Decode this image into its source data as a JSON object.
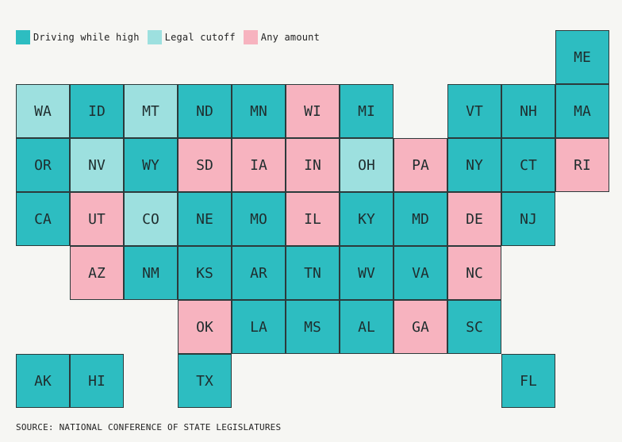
{
  "legend": [
    {
      "label": "Driving while high",
      "key": "high"
    },
    {
      "label": "Legal cutoff",
      "key": "cutoff"
    },
    {
      "label": "Any amount",
      "key": "any"
    }
  ],
  "colors": {
    "high": "#2dbdc1",
    "cutoff": "#9de0df",
    "any": "#f7b3bf"
  },
  "states": [
    {
      "abbr": "ME",
      "col": 10,
      "row": 0,
      "cat": "high"
    },
    {
      "abbr": "WA",
      "col": 0,
      "row": 1,
      "cat": "cutoff"
    },
    {
      "abbr": "ID",
      "col": 1,
      "row": 1,
      "cat": "high"
    },
    {
      "abbr": "MT",
      "col": 2,
      "row": 1,
      "cat": "cutoff"
    },
    {
      "abbr": "ND",
      "col": 3,
      "row": 1,
      "cat": "high"
    },
    {
      "abbr": "MN",
      "col": 4,
      "row": 1,
      "cat": "high"
    },
    {
      "abbr": "WI",
      "col": 5,
      "row": 1,
      "cat": "any"
    },
    {
      "abbr": "MI",
      "col": 6,
      "row": 1,
      "cat": "high"
    },
    {
      "abbr": "VT",
      "col": 8,
      "row": 1,
      "cat": "high"
    },
    {
      "abbr": "NH",
      "col": 9,
      "row": 1,
      "cat": "high"
    },
    {
      "abbr": "MA",
      "col": 10,
      "row": 1,
      "cat": "high"
    },
    {
      "abbr": "OR",
      "col": 0,
      "row": 2,
      "cat": "high"
    },
    {
      "abbr": "NV",
      "col": 1,
      "row": 2,
      "cat": "cutoff"
    },
    {
      "abbr": "WY",
      "col": 2,
      "row": 2,
      "cat": "high"
    },
    {
      "abbr": "SD",
      "col": 3,
      "row": 2,
      "cat": "any"
    },
    {
      "abbr": "IA",
      "col": 4,
      "row": 2,
      "cat": "any"
    },
    {
      "abbr": "IN",
      "col": 5,
      "row": 2,
      "cat": "any"
    },
    {
      "abbr": "OH",
      "col": 6,
      "row": 2,
      "cat": "cutoff"
    },
    {
      "abbr": "PA",
      "col": 7,
      "row": 2,
      "cat": "any"
    },
    {
      "abbr": "NY",
      "col": 8,
      "row": 2,
      "cat": "high"
    },
    {
      "abbr": "CT",
      "col": 9,
      "row": 2,
      "cat": "high"
    },
    {
      "abbr": "RI",
      "col": 10,
      "row": 2,
      "cat": "any"
    },
    {
      "abbr": "CA",
      "col": 0,
      "row": 3,
      "cat": "high"
    },
    {
      "abbr": "UT",
      "col": 1,
      "row": 3,
      "cat": "any"
    },
    {
      "abbr": "CO",
      "col": 2,
      "row": 3,
      "cat": "cutoff"
    },
    {
      "abbr": "NE",
      "col": 3,
      "row": 3,
      "cat": "high"
    },
    {
      "abbr": "MO",
      "col": 4,
      "row": 3,
      "cat": "high"
    },
    {
      "abbr": "IL",
      "col": 5,
      "row": 3,
      "cat": "any"
    },
    {
      "abbr": "KY",
      "col": 6,
      "row": 3,
      "cat": "high"
    },
    {
      "abbr": "MD",
      "col": 7,
      "row": 3,
      "cat": "high"
    },
    {
      "abbr": "DE",
      "col": 8,
      "row": 3,
      "cat": "any"
    },
    {
      "abbr": "NJ",
      "col": 9,
      "row": 3,
      "cat": "high"
    },
    {
      "abbr": "AZ",
      "col": 1,
      "row": 4,
      "cat": "any"
    },
    {
      "abbr": "NM",
      "col": 2,
      "row": 4,
      "cat": "high"
    },
    {
      "abbr": "KS",
      "col": 3,
      "row": 4,
      "cat": "high"
    },
    {
      "abbr": "AR",
      "col": 4,
      "row": 4,
      "cat": "high"
    },
    {
      "abbr": "TN",
      "col": 5,
      "row": 4,
      "cat": "high"
    },
    {
      "abbr": "WV",
      "col": 6,
      "row": 4,
      "cat": "high"
    },
    {
      "abbr": "VA",
      "col": 7,
      "row": 4,
      "cat": "high"
    },
    {
      "abbr": "NC",
      "col": 8,
      "row": 4,
      "cat": "any"
    },
    {
      "abbr": "OK",
      "col": 3,
      "row": 5,
      "cat": "any"
    },
    {
      "abbr": "LA",
      "col": 4,
      "row": 5,
      "cat": "high"
    },
    {
      "abbr": "MS",
      "col": 5,
      "row": 5,
      "cat": "high"
    },
    {
      "abbr": "AL",
      "col": 6,
      "row": 5,
      "cat": "high"
    },
    {
      "abbr": "GA",
      "col": 7,
      "row": 5,
      "cat": "any"
    },
    {
      "abbr": "SC",
      "col": 8,
      "row": 5,
      "cat": "high"
    },
    {
      "abbr": "AK",
      "col": 0,
      "row": 6,
      "cat": "high"
    },
    {
      "abbr": "HI",
      "col": 1,
      "row": 6,
      "cat": "high"
    },
    {
      "abbr": "TX",
      "col": 3,
      "row": 6,
      "cat": "high"
    },
    {
      "abbr": "FL",
      "col": 9,
      "row": 6,
      "cat": "high"
    }
  ],
  "source": "SOURCE: NATIONAL CONFERENCE OF STATE LEGISLATURES"
}
